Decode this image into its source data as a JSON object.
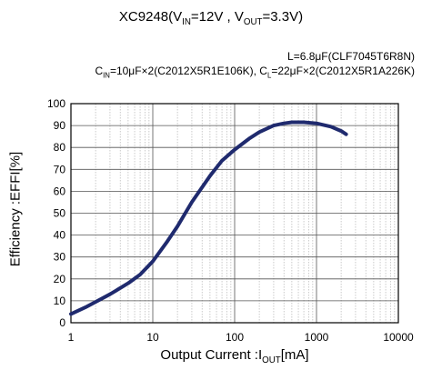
{
  "title": {
    "main": "XC9248(V",
    "sub1": "IN",
    "mid": "=12V , V",
    "sub2": "OUT",
    "end": "=3.3V)"
  },
  "conditions": {
    "line1": "L=6.8μF(CLF7045T6R8N)",
    "line2_a": "C",
    "line2_a_sub": "IN",
    "line2_b": "=10μF×2(C2012X5R1E106K), C",
    "line2_b_sub": "L",
    "line2_c": "=22μF×2(C2012X5R1A226K)"
  },
  "axis_labels": {
    "ylabel": "Efficiency :EFFI[%]",
    "xlabel_main": "Output Current :I",
    "xlabel_sub": "OUT",
    "xlabel_unit": "[mA]"
  },
  "chart_data": {
    "type": "line",
    "xscale": "log",
    "xlim": [
      1,
      10000
    ],
    "ylim": [
      0,
      100
    ],
    "xticks": [
      "1",
      "10",
      "100",
      "1000",
      "10000"
    ],
    "yticks": [
      "0",
      "10",
      "20",
      "30",
      "40",
      "50",
      "60",
      "70",
      "80",
      "90",
      "100"
    ],
    "grid": true,
    "color": "#1f2a6e",
    "series": [
      {
        "x": [
          1,
          1.5,
          2,
          3,
          5,
          7,
          10,
          15,
          20,
          30,
          50,
          70,
          100,
          150,
          200,
          300,
          400,
          500,
          700,
          1000,
          1500,
          2000,
          2300
        ],
        "y": [
          4,
          7,
          9.5,
          13,
          18,
          22,
          28,
          37,
          44,
          55,
          67,
          74,
          79,
          84,
          87,
          90,
          91,
          91.5,
          91.5,
          91,
          89.5,
          87.5,
          86
        ]
      }
    ]
  }
}
